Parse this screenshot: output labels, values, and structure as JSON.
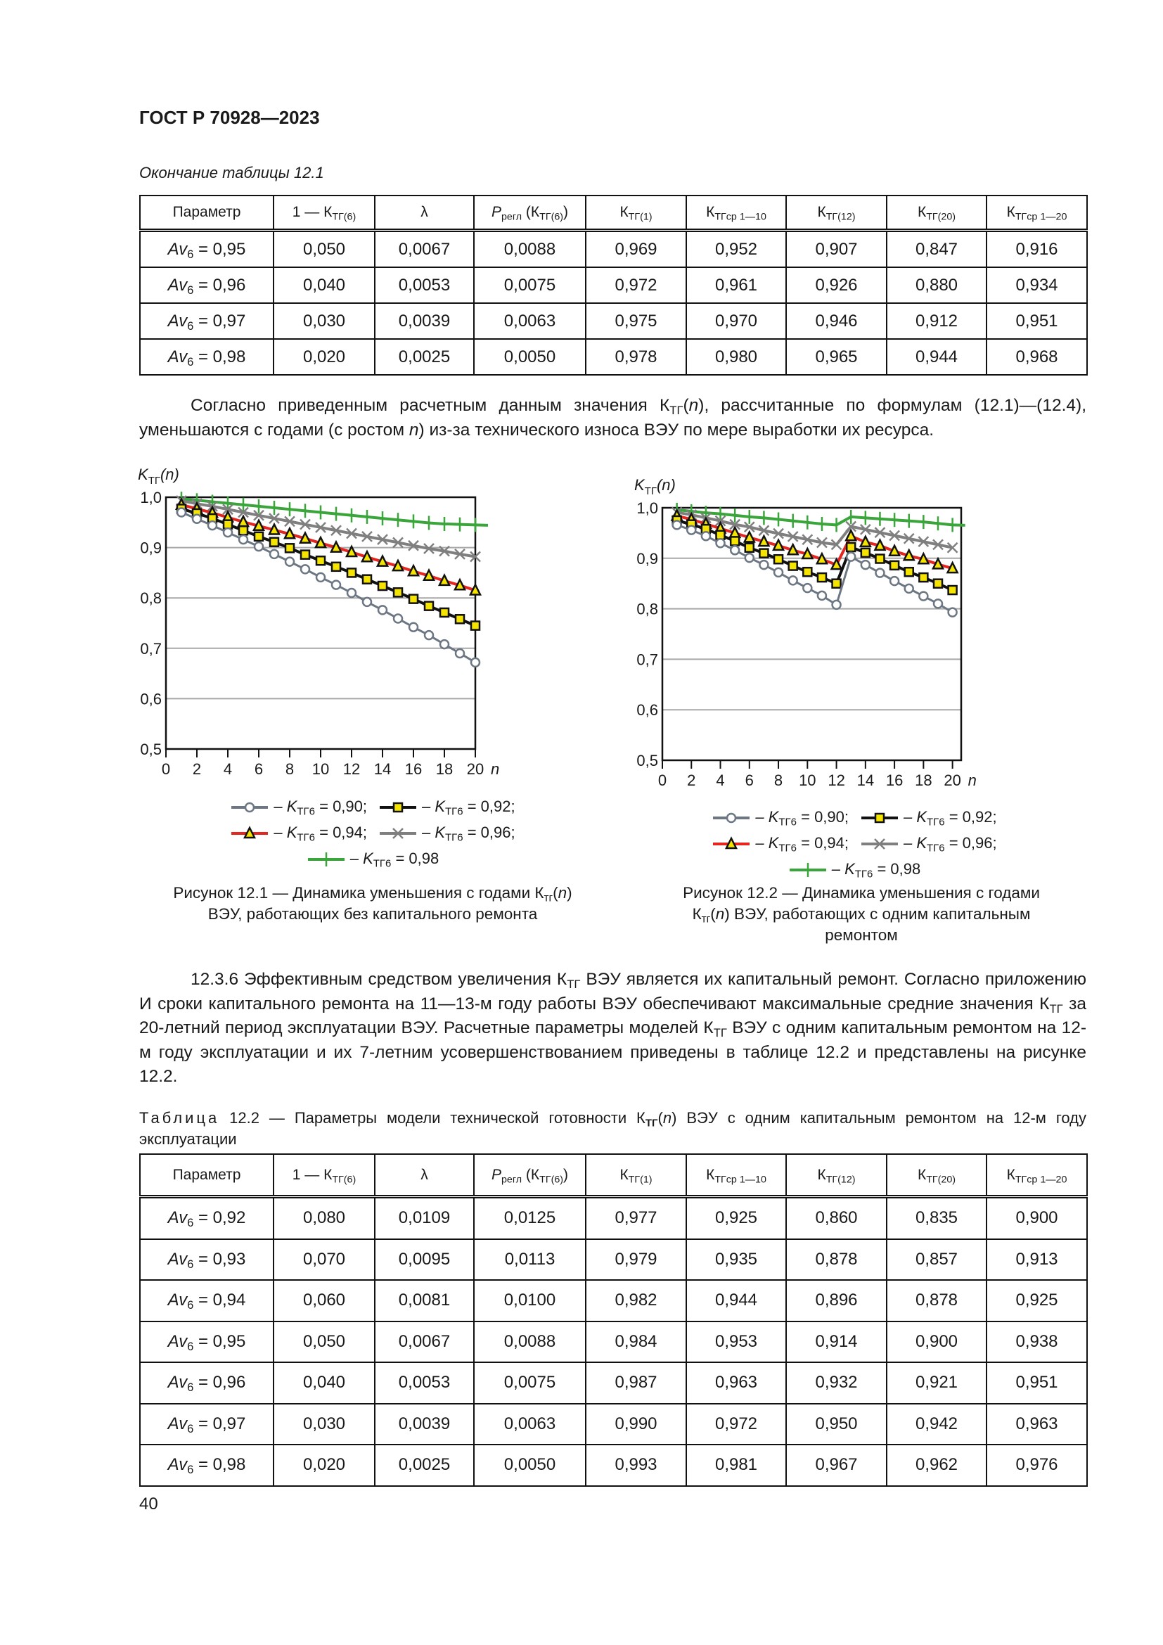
{
  "header": {
    "title": "ГОСТ Р 70928—2023"
  },
  "table1": {
    "caption": "Окончание таблицы 12.1",
    "columns": [
      [
        {
          "t": "Параметр"
        }
      ],
      [
        {
          "t": "1 — К"
        },
        {
          "t": "ТГ(6)",
          "sub": true
        }
      ],
      [
        {
          "t": "λ"
        }
      ],
      [
        {
          "t": "P",
          "i": true
        },
        {
          "t": "регл",
          "sub": true
        },
        {
          "t": " (К"
        },
        {
          "t": "ТГ(6)",
          "sub": true
        },
        {
          "t": ")"
        }
      ],
      [
        {
          "t": "К"
        },
        {
          "t": "ТГ(1)",
          "sub": true
        }
      ],
      [
        {
          "t": "К"
        },
        {
          "t": "ТГср 1—10",
          "sub": true
        }
      ],
      [
        {
          "t": "К"
        },
        {
          "t": "ТГ(12)",
          "sub": true
        }
      ],
      [
        {
          "t": "К"
        },
        {
          "t": "ТГ(20)",
          "sub": true
        }
      ],
      [
        {
          "t": "К"
        },
        {
          "t": "ТГср 1—20",
          "sub": true
        }
      ]
    ],
    "rows": [
      {
        "param": "0,95",
        "cells": [
          "0,050",
          "0,0067",
          "0,0088",
          "0,969",
          "0,952",
          "0,907",
          "0,847",
          "0,916"
        ]
      },
      {
        "param": "0,96",
        "cells": [
          "0,040",
          "0,0053",
          "0,0075",
          "0,972",
          "0,961",
          "0,926",
          "0,880",
          "0,934"
        ]
      },
      {
        "param": "0,97",
        "cells": [
          "0,030",
          "0,0039",
          "0,0063",
          "0,975",
          "0,970",
          "0,946",
          "0,912",
          "0,951"
        ]
      },
      {
        "param": "0,98",
        "cells": [
          "0,020",
          "0,0025",
          "0,0050",
          "0,978",
          "0,980",
          "0,965",
          "0,944",
          "0,968"
        ]
      }
    ]
  },
  "param_label": {
    "name": "Av",
    "sub": "6",
    "eq": " = "
  },
  "paragraph1": [
    {
      "t": "Согласно приведенным расчетным данным значения К"
    },
    {
      "t": "ТГ",
      "sub": true
    },
    {
      "t": "("
    },
    {
      "t": "n",
      "i": true
    },
    {
      "t": "), рассчитанные по формулам (12.1)—(12.4), уменьшаются с годами (с ростом "
    },
    {
      "t": "n",
      "i": true
    },
    {
      "t": ") из-за технического износа ВЭУ по мере выработки их ресурса."
    }
  ],
  "chart_data": [
    {
      "type": "line",
      "title": "Рисунок 12.1 — Динамика уменьшения с годами Ктг(n) ВЭУ, работающих без капитального ремонта",
      "ylabel": "KТГ(n)",
      "xlabel": "n",
      "xlim": [
        0,
        20
      ],
      "ylim": [
        0.5,
        1.0
      ],
      "xticks": [
        "0",
        "2",
        "4",
        "6",
        "8",
        "10",
        "12",
        "14",
        "16",
        "18",
        "20"
      ],
      "yticks": [
        "0,5",
        "0,6",
        "0,7",
        "0,8",
        "0,9",
        "1,0"
      ],
      "grid": true,
      "x": [
        1,
        2,
        3,
        4,
        5,
        6,
        7,
        8,
        9,
        10,
        11,
        12,
        13,
        14,
        15,
        16,
        17,
        18,
        19,
        20
      ],
      "series": [
        {
          "name": "0,90",
          "marker": "circle",
          "color": "#6d7784",
          "values": [
            0.97,
            0.957,
            0.944,
            0.93,
            0.916,
            0.902,
            0.887,
            0.872,
            0.857,
            0.841,
            0.826,
            0.81,
            0.792,
            0.776,
            0.759,
            0.742,
            0.726,
            0.708,
            0.69,
            0.672
          ]
        },
        {
          "name": "0,92",
          "marker": "square",
          "color": "#111111",
          "values": [
            0.977,
            0.968,
            0.958,
            0.946,
            0.934,
            0.922,
            0.911,
            0.899,
            0.886,
            0.874,
            0.862,
            0.85,
            0.837,
            0.824,
            0.811,
            0.798,
            0.784,
            0.771,
            0.758,
            0.745
          ]
        },
        {
          "name": "0,94",
          "marker": "triangle",
          "color": "#e3261f",
          "values": [
            0.985,
            0.977,
            0.969,
            0.96,
            0.951,
            0.943,
            0.935,
            0.927,
            0.918,
            0.909,
            0.9,
            0.891,
            0.881,
            0.872,
            0.863,
            0.853,
            0.844,
            0.834,
            0.825,
            0.815
          ]
        },
        {
          "name": "0,96",
          "marker": "x",
          "color": "#7f7f7f",
          "values": [
            0.993,
            0.987,
            0.982,
            0.976,
            0.97,
            0.964,
            0.958,
            0.952,
            0.946,
            0.94,
            0.934,
            0.928,
            0.922,
            0.916,
            0.91,
            0.904,
            0.898,
            0.893,
            0.887,
            0.882
          ]
        },
        {
          "name": "0,98",
          "marker": "plus",
          "color": "#3aa53a",
          "values": [
            0.997,
            0.994,
            0.991,
            0.988,
            0.985,
            0.982,
            0.979,
            0.976,
            0.973,
            0.97,
            0.967,
            0.964,
            0.961,
            0.958,
            0.955,
            0.952,
            0.949,
            0.947,
            0.946,
            0.945
          ]
        }
      ],
      "legend": {
        "prefix": "– K",
        "sub": "ТГ6",
        "eq": " = "
      },
      "caption": [
        {
          "t": "Рисунок 12.1 — Динамика уменьшения с годами К"
        },
        {
          "t": "тг",
          "sub": true
        },
        {
          "t": "("
        },
        {
          "t": "n",
          "i": true
        },
        {
          "t": ")"
        },
        {
          "br": true
        },
        {
          "t": "ВЭУ, работающих без капитального ремонта"
        }
      ]
    },
    {
      "type": "line",
      "title": "Рисунок 12.2 — Динамика уменьшения с годами Ктг(n) ВЭУ, работающих с одним капитальным ремонтом",
      "ylabel": "KТГ(n)",
      "xlabel": "n",
      "xlim": [
        0,
        20.6
      ],
      "ylim": [
        0.5,
        1.0
      ],
      "xticks": [
        "0",
        "2",
        "4",
        "6",
        "8",
        "10",
        "12",
        "14",
        "16",
        "18",
        "20"
      ],
      "yticks": [
        "0,5",
        "0,6",
        "0,7",
        "0,8",
        "0,9",
        "1,0"
      ],
      "grid": true,
      "x": [
        1,
        2,
        3,
        4,
        5,
        6,
        7,
        8,
        9,
        10,
        11,
        12,
        13,
        14,
        15,
        16,
        17,
        18,
        19,
        20
      ],
      "series": [
        {
          "name": "0,90",
          "marker": "circle",
          "color": "#6d7784",
          "values": [
            0.966,
            0.956,
            0.944,
            0.93,
            0.916,
            0.901,
            0.887,
            0.872,
            0.856,
            0.841,
            0.826,
            0.808,
            0.903,
            0.887,
            0.871,
            0.855,
            0.84,
            0.825,
            0.81,
            0.793
          ]
        },
        {
          "name": "0,92",
          "marker": "square",
          "color": "#111111",
          "values": [
            0.975,
            0.967,
            0.958,
            0.946,
            0.934,
            0.921,
            0.91,
            0.898,
            0.885,
            0.873,
            0.862,
            0.85,
            0.922,
            0.911,
            0.899,
            0.886,
            0.873,
            0.862,
            0.85,
            0.837
          ]
        },
        {
          "name": "0,94",
          "marker": "triangle",
          "color": "#e3261f",
          "values": [
            0.984,
            0.977,
            0.968,
            0.959,
            0.95,
            0.941,
            0.933,
            0.925,
            0.916,
            0.908,
            0.898,
            0.887,
            0.944,
            0.932,
            0.925,
            0.914,
            0.905,
            0.898,
            0.888,
            0.88
          ]
        },
        {
          "name": "0,96",
          "marker": "x",
          "color": "#7f7f7f",
          "values": [
            0.991,
            0.986,
            0.98,
            0.974,
            0.967,
            0.962,
            0.955,
            0.949,
            0.943,
            0.937,
            0.931,
            0.927,
            0.963,
            0.957,
            0.951,
            0.945,
            0.939,
            0.933,
            0.927,
            0.921
          ]
        },
        {
          "name": "0,98",
          "marker": "plus",
          "color": "#3aa53a",
          "values": [
            0.996,
            0.993,
            0.99,
            0.988,
            0.985,
            0.982,
            0.98,
            0.977,
            0.974,
            0.971,
            0.968,
            0.966,
            0.982,
            0.98,
            0.978,
            0.976,
            0.974,
            0.972,
            0.969,
            0.966
          ]
        }
      ],
      "legend": {
        "prefix": "– K",
        "sub": "ТГ6",
        "eq": " = "
      },
      "caption": [
        {
          "t": "Рисунок 12.2 — Динамика уменьшения с годами"
        },
        {
          "br": true
        },
        {
          "t": "К"
        },
        {
          "t": "тг",
          "sub": true
        },
        {
          "t": "("
        },
        {
          "t": "n",
          "i": true
        },
        {
          "t": ") ВЭУ, работающих с одним капитальным"
        },
        {
          "br": true
        },
        {
          "t": "ремонтом"
        }
      ]
    }
  ],
  "paragraph2": [
    {
      "t": "12.3.6 Эффективным средством увеличения К"
    },
    {
      "t": "ТГ",
      "sub": true
    },
    {
      "t": " ВЭУ является их капитальный ремонт. Согласно приложению И сроки капитального ремонта на 11—13-м году работы ВЭУ обеспечивают максимальные средние значения К"
    },
    {
      "t": "ТГ",
      "sub": true
    },
    {
      "t": " за 20-летний период эксплуатации ВЭУ. Расчетные параметры моделей К"
    },
    {
      "t": "ТГ",
      "sub": true
    },
    {
      "t": " ВЭУ с одним капитальным ремонтом на 12-м году эксплуатации и их 7-летним усовершенствованием приведены в таблице 12.2 и представлены на рисунке 12.2."
    }
  ],
  "table2": {
    "caption": [
      {
        "t": "Таблица",
        "spaced": true
      },
      {
        "t": " 12.2 — Параметры модели технической готовности К"
      },
      {
        "t": "ТГ",
        "sub": true,
        "b": true
      },
      {
        "t": "("
      },
      {
        "t": "n",
        "i": true
      },
      {
        "t": ") ВЭУ с одним капитальным ремонтом на 12-м году эксплуатации"
      }
    ],
    "rows": [
      {
        "param": "0,92",
        "cells": [
          "0,080",
          "0,0109",
          "0,0125",
          "0,977",
          "0,925",
          "0,860",
          "0,835",
          "0,900"
        ]
      },
      {
        "param": "0,93",
        "cells": [
          "0,070",
          "0,0095",
          "0,0113",
          "0,979",
          "0,935",
          "0,878",
          "0,857",
          "0,913"
        ]
      },
      {
        "param": "0,94",
        "cells": [
          "0,060",
          "0,0081",
          "0,0100",
          "0,982",
          "0,944",
          "0,896",
          "0,878",
          "0,925"
        ]
      },
      {
        "param": "0,95",
        "cells": [
          "0,050",
          "0,0067",
          "0,0088",
          "0,984",
          "0,953",
          "0,914",
          "0,900",
          "0,938"
        ]
      },
      {
        "param": "0,96",
        "cells": [
          "0,040",
          "0,0053",
          "0,0075",
          "0,987",
          "0,963",
          "0,932",
          "0,921",
          "0,951"
        ]
      },
      {
        "param": "0,97",
        "cells": [
          "0,030",
          "0,0039",
          "0,0063",
          "0,990",
          "0,972",
          "0,950",
          "0,942",
          "0,963"
        ]
      },
      {
        "param": "0,98",
        "cells": [
          "0,020",
          "0,0025",
          "0,0050",
          "0,993",
          "0,981",
          "0,967",
          "0,962",
          "0,976"
        ]
      }
    ]
  },
  "footer": {
    "page_number": "40"
  }
}
